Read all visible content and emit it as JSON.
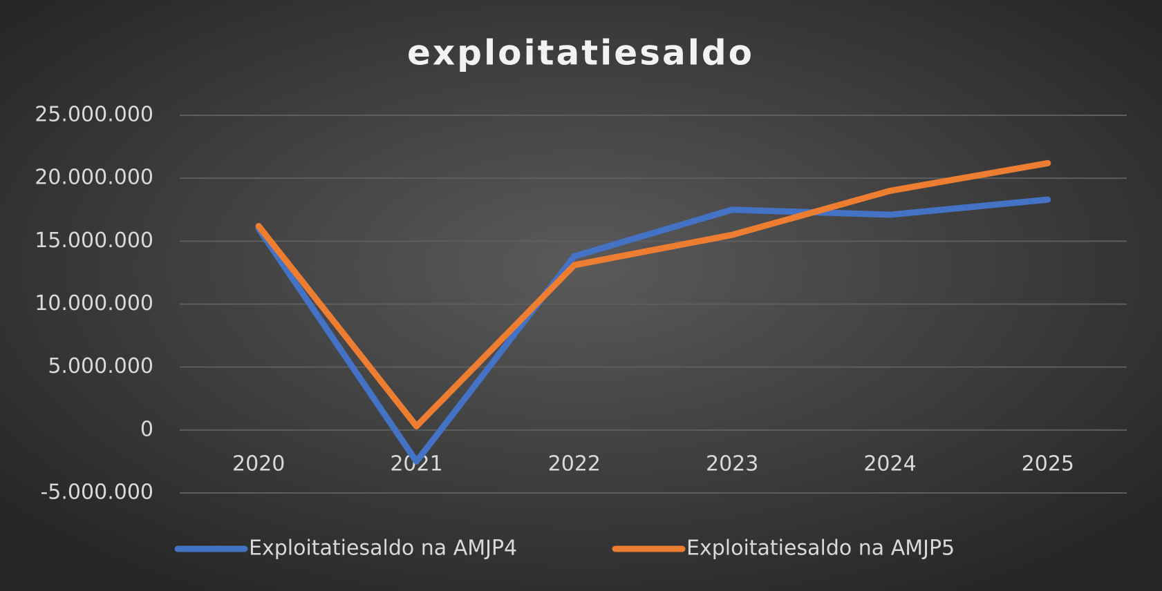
{
  "chart_data": {
    "type": "line",
    "title": "exploitatiesaldo",
    "categories": [
      "2020",
      "2021",
      "2022",
      "2023",
      "2024",
      "2025"
    ],
    "series": [
      {
        "name": "Exploitatiesaldo na AMJP4",
        "color": "#4472c4",
        "values": [
          16000000,
          -2500000,
          13800000,
          17500000,
          17100000,
          18300000
        ]
      },
      {
        "name": "Exploitatiesaldo na AMJP5",
        "color": "#ed7d31",
        "values": [
          16200000,
          300000,
          13100000,
          15500000,
          19000000,
          21200000
        ]
      }
    ],
    "ylim": [
      -5000000,
      25000000
    ],
    "yticks": [
      {
        "value": -5000000,
        "label": "-5.000.000"
      },
      0,
      {
        "value": 5000000,
        "label": "5.000.000"
      },
      {
        "value": 10000000,
        "label": "10.000.000"
      },
      {
        "value": 15000000,
        "label": "15.000.000"
      },
      {
        "value": 20000000,
        "label": "20.000.000"
      },
      {
        "value": 25000000,
        "label": "25.000.000"
      }
    ],
    "grid": true,
    "legend": "bottom"
  }
}
